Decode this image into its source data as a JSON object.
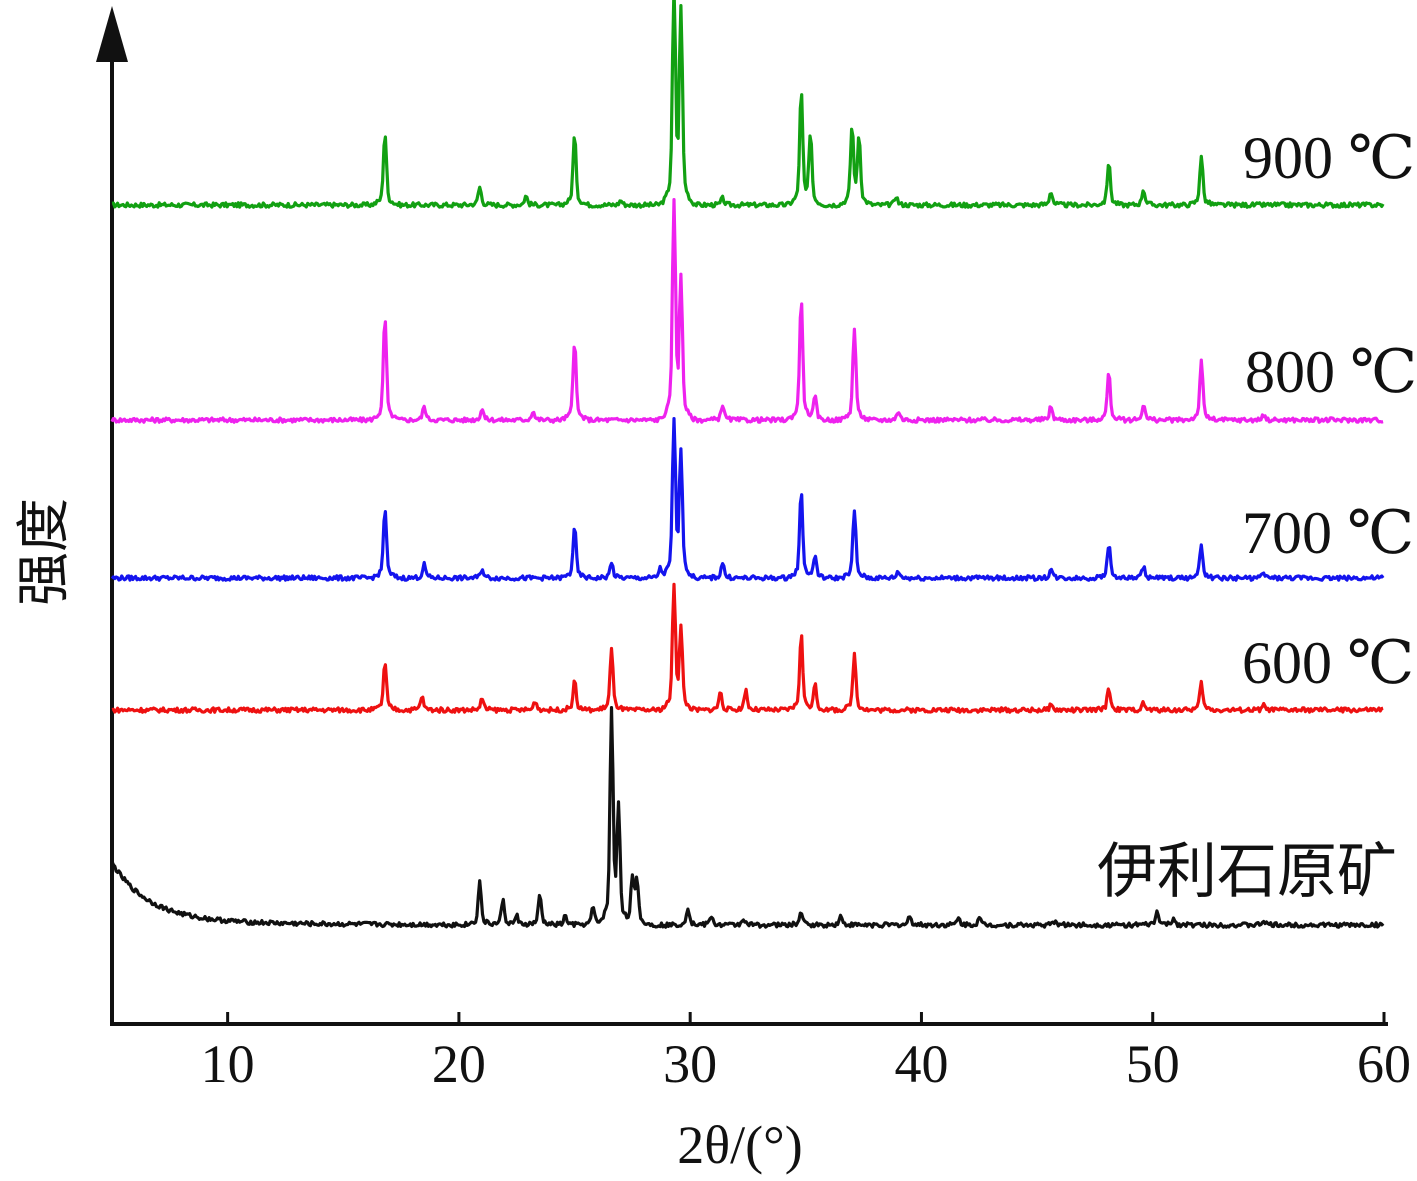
{
  "chart_data": {
    "type": "line",
    "xlabel": "2θ/(°)",
    "ylabel": "强度",
    "xlim": [
      5,
      60
    ],
    "xticks": [
      10,
      20,
      30,
      40,
      50,
      60
    ],
    "y_ticks_shown": false,
    "grid": false,
    "legend": "labels placed at right end of each trace",
    "series": [
      {
        "name": "900 ℃",
        "color": "#12a012",
        "baseline": 0,
        "peaks": [
          [
            16.8,
            64
          ],
          [
            20.9,
            16
          ],
          [
            22.9,
            8
          ],
          [
            25.0,
            62
          ],
          [
            27.0,
            4
          ],
          [
            29.3,
            186
          ],
          [
            29.6,
            170
          ],
          [
            31.4,
            6
          ],
          [
            34.8,
            100
          ],
          [
            35.2,
            60
          ],
          [
            37.0,
            68
          ],
          [
            37.3,
            60
          ],
          [
            38.9,
            8
          ],
          [
            45.6,
            12
          ],
          [
            48.1,
            38
          ],
          [
            49.6,
            14
          ],
          [
            52.1,
            44
          ]
        ]
      },
      {
        "name": "800 ℃",
        "color": "#ee22ee",
        "baseline": 0,
        "peaks": [
          [
            16.8,
            92
          ],
          [
            18.5,
            12
          ],
          [
            21.0,
            10
          ],
          [
            23.2,
            8
          ],
          [
            25.0,
            70
          ],
          [
            29.3,
            190
          ],
          [
            29.6,
            120
          ],
          [
            31.4,
            14
          ],
          [
            34.8,
            110
          ],
          [
            35.4,
            20
          ],
          [
            37.1,
            82
          ],
          [
            39.0,
            8
          ],
          [
            45.6,
            12
          ],
          [
            48.1,
            42
          ],
          [
            49.6,
            14
          ],
          [
            52.1,
            52
          ],
          [
            54.8,
            4
          ]
        ]
      },
      {
        "name": "700 ℃",
        "color": "#1414ee",
        "baseline": 0,
        "peaks": [
          [
            16.8,
            62
          ],
          [
            18.5,
            12
          ],
          [
            21.0,
            8
          ],
          [
            25.0,
            46
          ],
          [
            26.6,
            14
          ],
          [
            28.7,
            8
          ],
          [
            29.3,
            136
          ],
          [
            29.6,
            110
          ],
          [
            31.4,
            14
          ],
          [
            34.8,
            78
          ],
          [
            35.4,
            20
          ],
          [
            37.1,
            60
          ],
          [
            39.0,
            6
          ],
          [
            45.6,
            8
          ],
          [
            48.1,
            30
          ],
          [
            49.6,
            10
          ],
          [
            52.1,
            30
          ],
          [
            54.8,
            4
          ]
        ]
      },
      {
        "name": "600 ℃",
        "color": "#ee1111",
        "baseline": 0,
        "peaks": [
          [
            16.8,
            42
          ],
          [
            18.4,
            12
          ],
          [
            21.0,
            10
          ],
          [
            23.3,
            8
          ],
          [
            25.0,
            26
          ],
          [
            26.6,
            54
          ],
          [
            29.3,
            108
          ],
          [
            29.6,
            70
          ],
          [
            31.3,
            16
          ],
          [
            32.4,
            18
          ],
          [
            34.8,
            68
          ],
          [
            35.4,
            22
          ],
          [
            37.1,
            50
          ],
          [
            45.6,
            4
          ],
          [
            48.1,
            20
          ],
          [
            49.6,
            6
          ],
          [
            52.1,
            24
          ],
          [
            54.8,
            4
          ]
        ]
      },
      {
        "name": "伊利石原矿",
        "color": "#111111",
        "baseline": 0,
        "background": "decaying from ~60 at 5° to ~5 by 10°",
        "peaks": [
          [
            20.9,
            38
          ],
          [
            21.9,
            22
          ],
          [
            22.5,
            8
          ],
          [
            23.5,
            26
          ],
          [
            24.6,
            8
          ],
          [
            25.8,
            16
          ],
          [
            26.6,
            190
          ],
          [
            26.9,
            100
          ],
          [
            27.5,
            40
          ],
          [
            27.7,
            40
          ],
          [
            29.9,
            16
          ],
          [
            30.9,
            8
          ],
          [
            32.3,
            6
          ],
          [
            34.8,
            12
          ],
          [
            36.5,
            8
          ],
          [
            39.5,
            8
          ],
          [
            41.6,
            6
          ],
          [
            42.5,
            6
          ],
          [
            45.8,
            4
          ],
          [
            50.2,
            12
          ],
          [
            50.9,
            6
          ],
          [
            54.8,
            4
          ]
        ]
      }
    ]
  }
}
